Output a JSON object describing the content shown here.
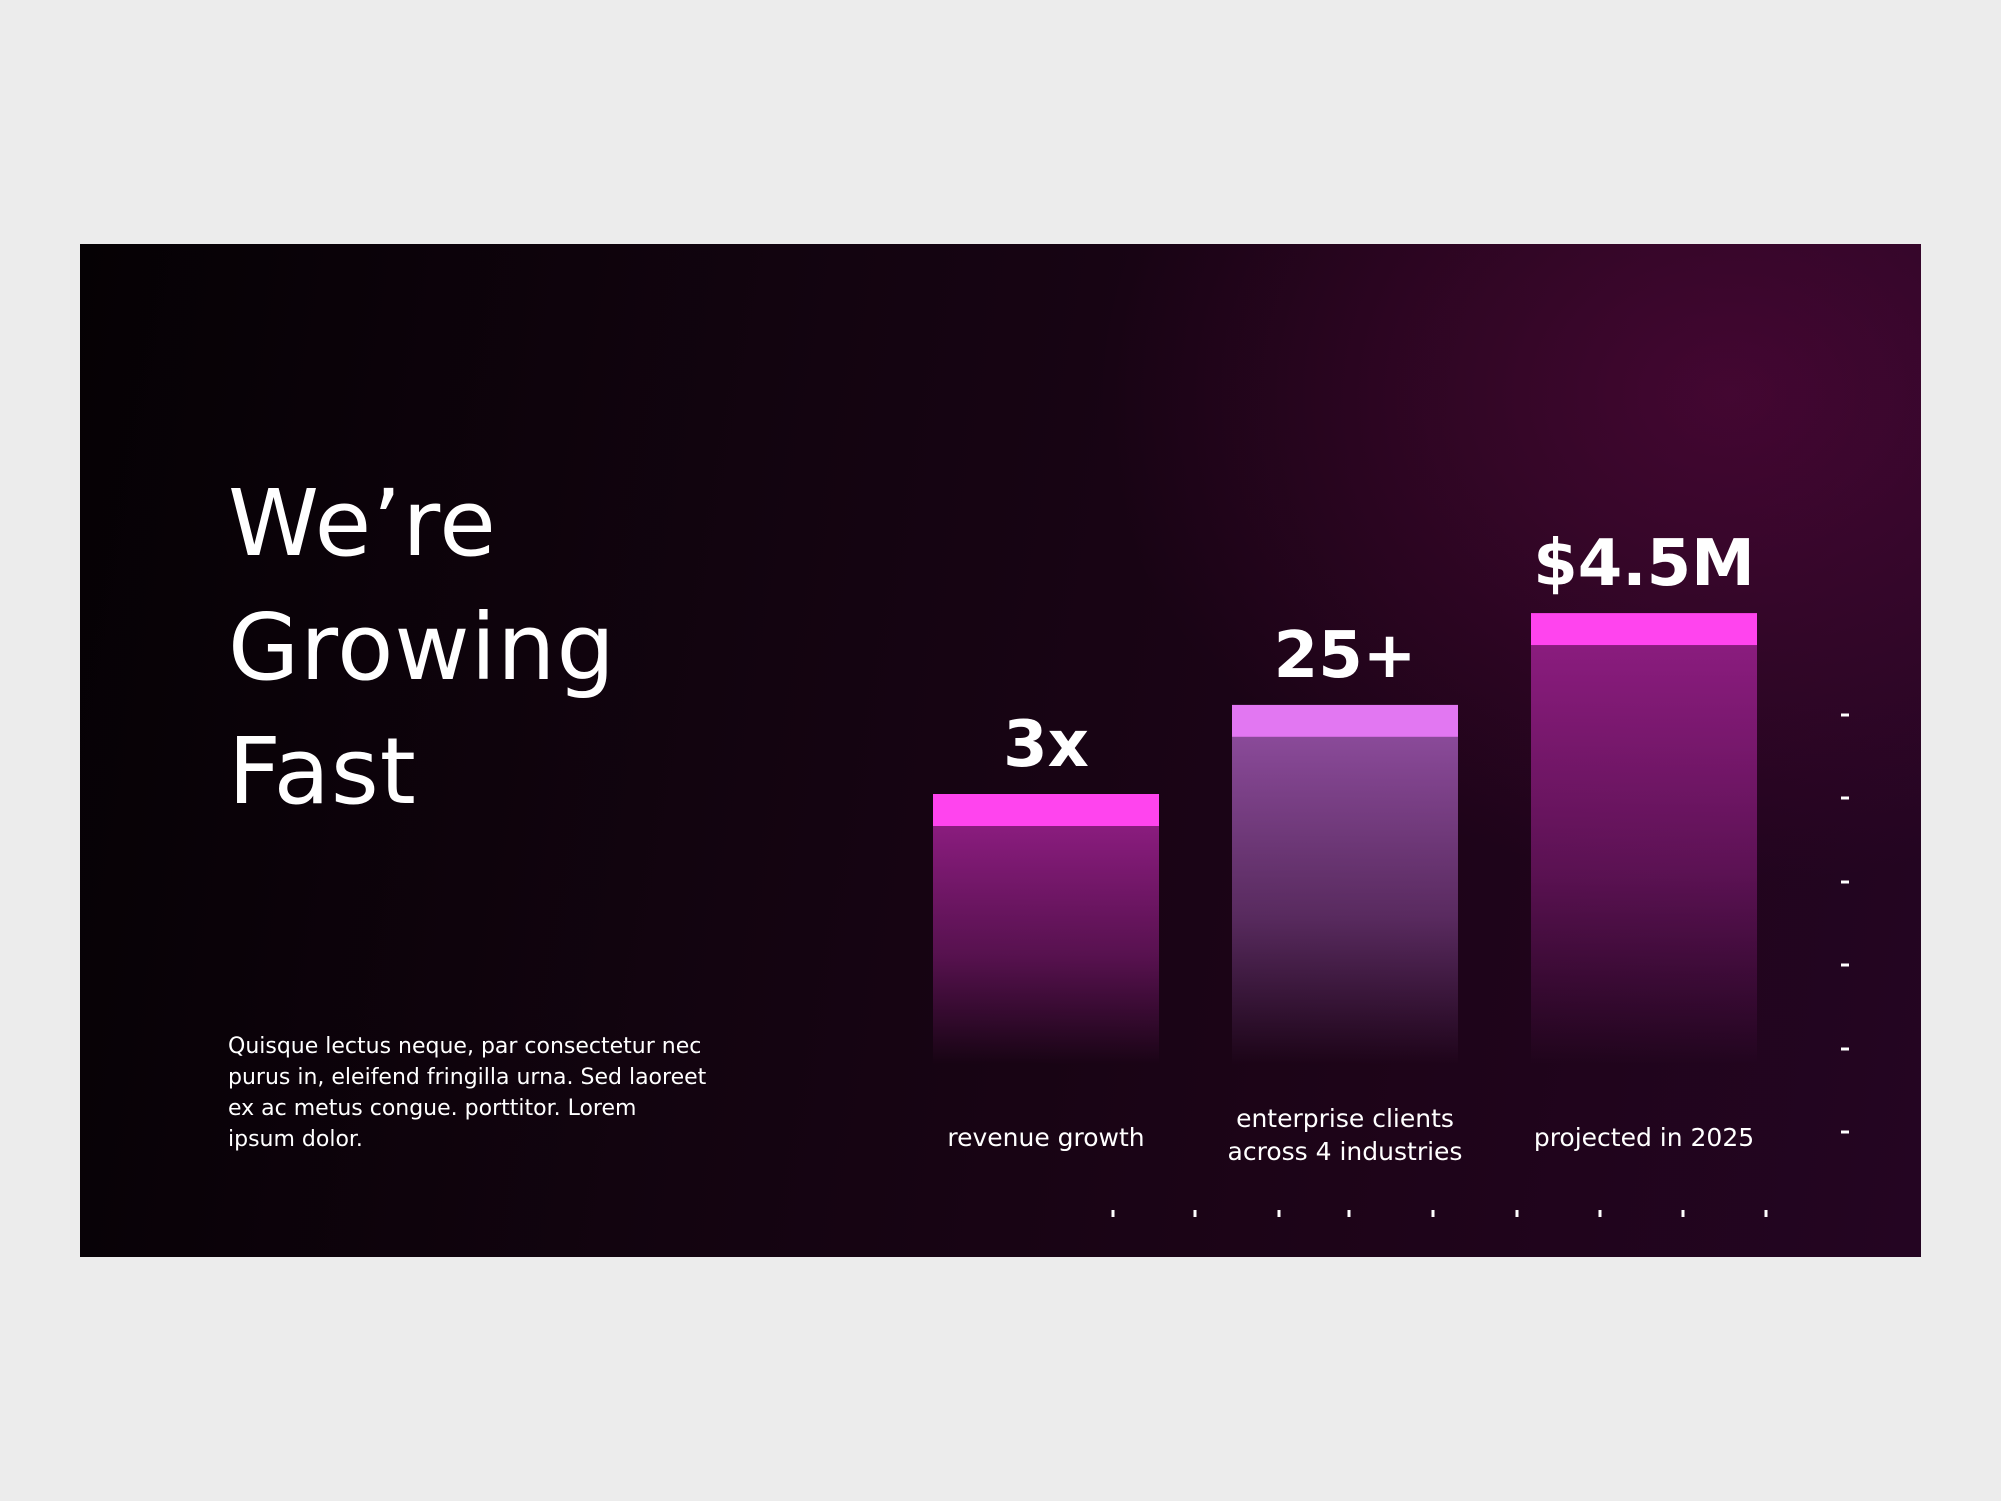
{
  "slide": {
    "title_lines": [
      "We’re",
      "Growing",
      "Fast"
    ],
    "body": "Quisque lectus neque, par consectetur nec purus in, eleifend fringilla urna. Sed laoreet ex ac metus congue. porttitor. Lorem ipsum dolor."
  },
  "colors": {
    "background": "#1a0415",
    "bar_cap_primary": "#ff44ee",
    "bar_cap_secondary": "#e277f2",
    "bar_body_primary": "#8a1c7e",
    "bar_body_secondary": "#8a4a99",
    "axis": "#ffffff"
  },
  "chart_data": {
    "type": "bar",
    "title": "",
    "xlabel": "",
    "ylabel": "",
    "grid": false,
    "categories": [
      [
        "revenue growth"
      ],
      [
        "enterprise clients",
        "across 4 industries"
      ],
      [
        "projected in 2025"
      ]
    ],
    "value_labels": [
      "3x",
      "25+",
      "$4.5M"
    ],
    "values": [
      1,
      1.33,
      1.67
    ],
    "ylim": [
      0,
      2
    ]
  }
}
